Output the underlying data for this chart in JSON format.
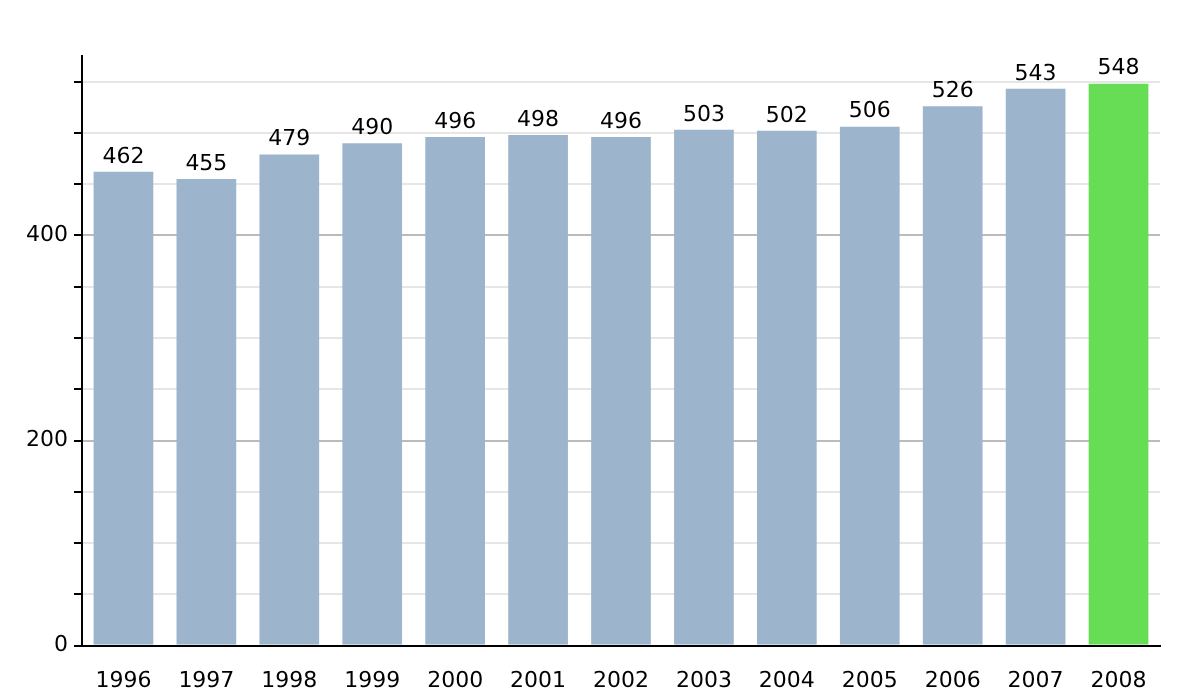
{
  "chart_data": {
    "type": "bar",
    "categories": [
      "1996",
      "1997",
      "1998",
      "1999",
      "2000",
      "2001",
      "2002",
      "2003",
      "2004",
      "2005",
      "2006",
      "2007",
      "2008"
    ],
    "values": [
      462,
      455,
      479,
      490,
      496,
      498,
      496,
      503,
      502,
      506,
      526,
      543,
      548
    ],
    "colors": [
      "#9db4cd",
      "#9db4cd",
      "#9db4cd",
      "#9db4cd",
      "#9db4cd",
      "#9db4cd",
      "#9db4cd",
      "#9db4cd",
      "#9db4cd",
      "#9db4cd",
      "#9db4cd",
      "#9db4cd",
      "#66dd55"
    ],
    "ylim": [
      0,
      575
    ],
    "yticks": [
      0,
      {
        "value": 50,
        "label": null
      },
      {
        "value": 100,
        "label": null
      },
      {
        "value": 150,
        "label": null
      },
      200,
      {
        "value": 250,
        "label": null
      },
      {
        "value": 300,
        "label": null
      },
      {
        "value": 350,
        "label": null
      },
      400,
      {
        "value": 450,
        "label": null
      },
      {
        "value": 500,
        "label": null
      },
      {
        "value": 550,
        "label": null
      }
    ],
    "grid": "y",
    "data_labels": true,
    "legend": false
  }
}
